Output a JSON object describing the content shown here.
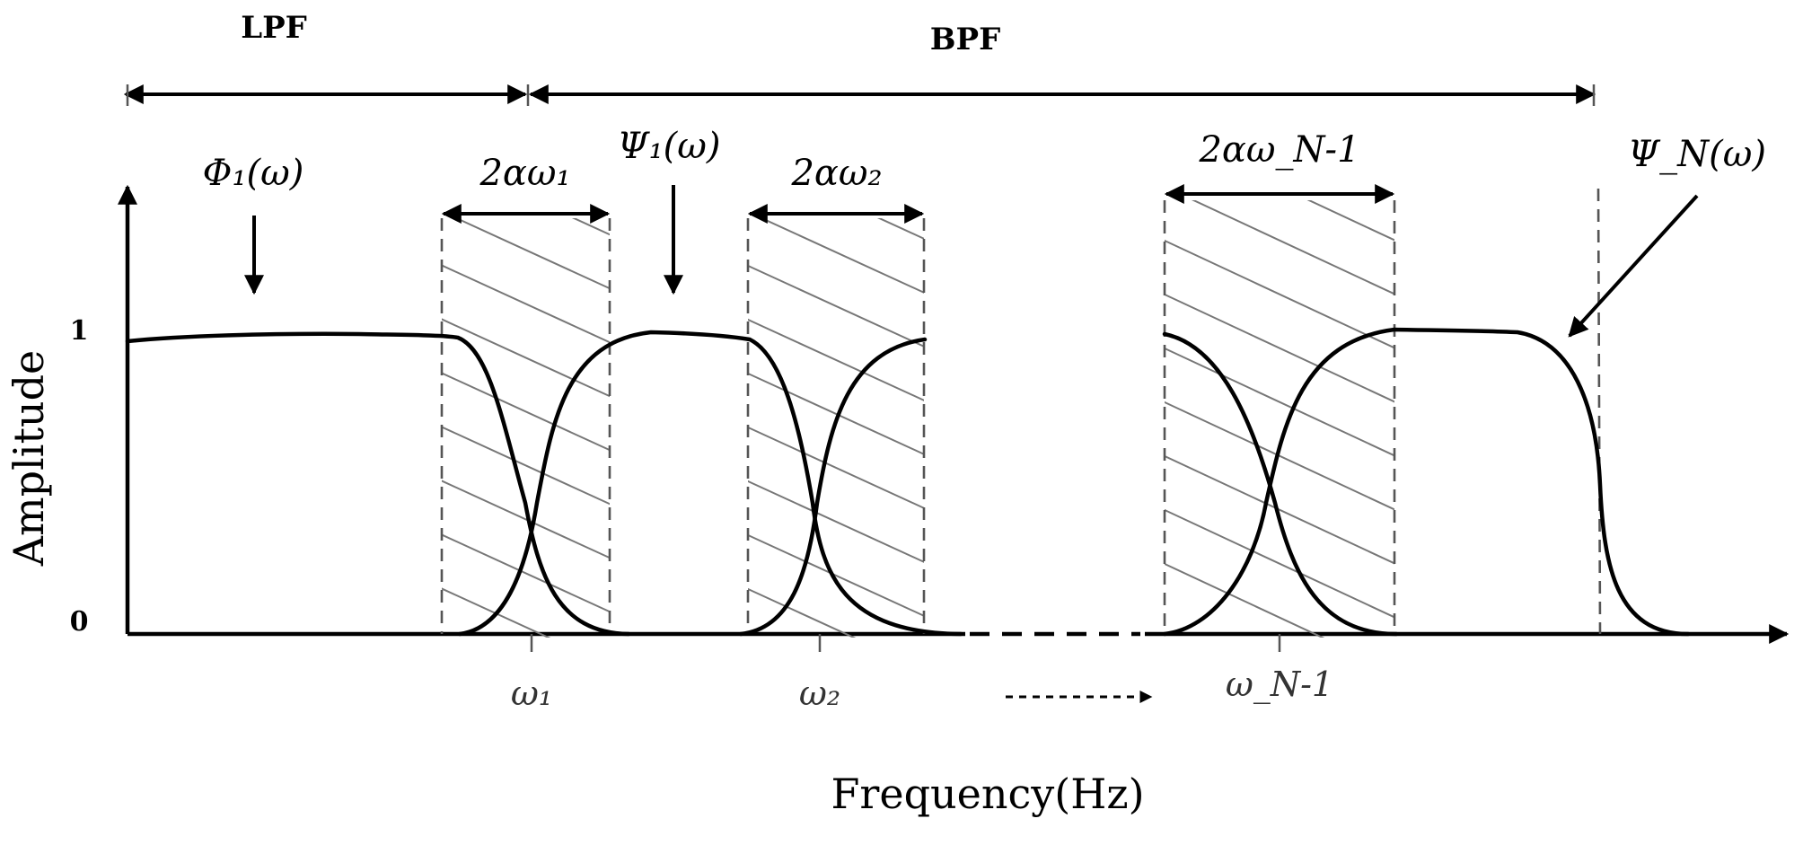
{
  "header": {
    "lpf_label": "LPF",
    "bpf_label": "BPF"
  },
  "axes": {
    "ylabel": "Amplitude",
    "xlabel": "Frequency(Hz)",
    "y_tick_one": "1",
    "y_tick_zero": "0"
  },
  "labels": {
    "phi1": "Φ₁(ω)",
    "psi1": "Ψ₁(ω)",
    "psiN": "Ψ_N(ω)",
    "band1": "2αω₁",
    "band2": "2αω₂",
    "bandN1": "2αω_N-1",
    "omega1": "ω₁",
    "omega2": "ω₂",
    "omegaN1": "ω_N-1"
  }
}
